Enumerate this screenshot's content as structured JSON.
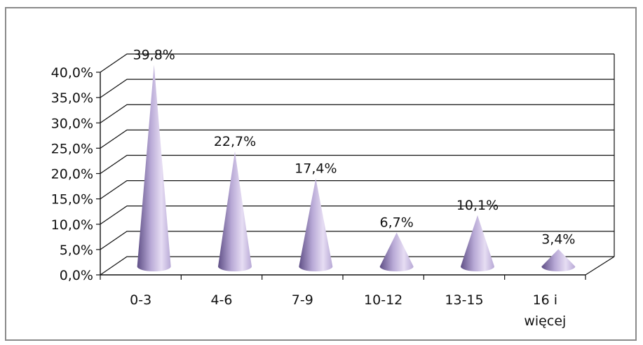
{
  "chart_data": {
    "type": "bar",
    "shape": "cone",
    "categories": [
      [
        "0-3"
      ],
      [
        "4-6"
      ],
      [
        "7-9"
      ],
      [
        "10-12"
      ],
      [
        "13-15"
      ],
      [
        "16 i",
        "więcej"
      ]
    ],
    "values": [
      39.8,
      22.7,
      17.4,
      6.7,
      10.1,
      3.4
    ],
    "data_labels": [
      "39,8%",
      "22,7%",
      "17,4%",
      "6,7%",
      "10,1%",
      "3,4%"
    ],
    "y_ticks": [
      0,
      5,
      10,
      15,
      20,
      25,
      30,
      35,
      40
    ],
    "y_tick_labels": [
      "0,0%",
      "5,0%",
      "10,0%",
      "15,0%",
      "20,0%",
      "25,0%",
      "30,0%",
      "35,0%",
      "40,0%"
    ],
    "ylim": [
      0,
      40
    ],
    "grid": true,
    "legend": false,
    "title": "",
    "xlabel": "",
    "ylabel": ""
  },
  "colors": {
    "cone_light": "#e6ddf3",
    "cone_mid": "#b8a9d6",
    "cone_dark": "#5f4f86",
    "grid": "#111111",
    "frame": "#8a8a8a"
  }
}
